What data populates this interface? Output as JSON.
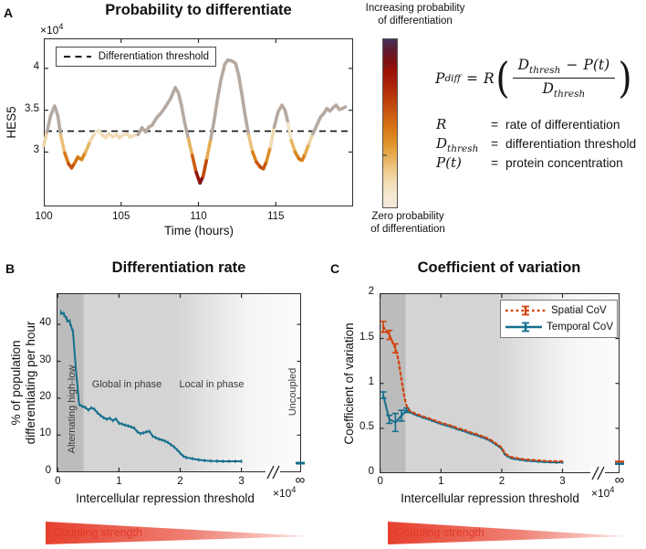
{
  "panelA": {
    "label": "A",
    "title": "Probability to differentiate",
    "y_exponent_prefix": "×10",
    "y_exponent": "4",
    "ylabel": "HES5",
    "xlabel": "Time (hours)",
    "legend_label": "Differentiation threshold",
    "colorbar_top_line1": "Increasing probability",
    "colorbar_top_line2": "of differentiation",
    "colorbar_bottom_line1": "Zero probability",
    "colorbar_bottom_line2": "of differentiation"
  },
  "equation": {
    "lhs_base": "P",
    "lhs_sub": "diff",
    "equals": "=",
    "rate_symbol": "R",
    "open_paren": "(",
    "close_paren": ")",
    "num_base": "D",
    "num_sub": "thresh",
    "minus": "−",
    "num_pt": "P(t)",
    "den_base": "D",
    "den_sub": "thresh",
    "defs": [
      {
        "sym": "R",
        "sub": "",
        "eq": "=",
        "desc": "rate of differentiation"
      },
      {
        "sym": "D",
        "sub": "thresh",
        "eq": "=",
        "desc": "differentiation threshold"
      },
      {
        "sym": "P(t)",
        "sub": "",
        "eq": "=",
        "desc": "protein concentration"
      }
    ]
  },
  "panelB": {
    "label": "B",
    "title": "Differentiation rate",
    "ylabel_line1": "% of population",
    "ylabel_line2": "differentiating per hour",
    "xlabel": "Intercellular repression threshold",
    "x_exponent_prefix": "×10",
    "x_exponent": "4",
    "region_labels": [
      "Alternating high-low",
      "Global in phase",
      "Local in phase",
      "Uncoupled"
    ],
    "infinity": "∞",
    "coupling_label": "Coupling strength"
  },
  "panelC": {
    "label": "C",
    "title": "Coefficient of variation",
    "ylabel": "Coefficient of variation",
    "xlabel": "Intercellular repression threshold",
    "x_exponent_prefix": "×10",
    "x_exponent": "4",
    "legend": [
      {
        "name": "Spatial CoV"
      },
      {
        "name": "Temporal CoV"
      }
    ],
    "infinity": "∞",
    "coupling_label": "Coupling strength"
  },
  "colors": {
    "teal": "#136f8d",
    "red_orange": "#d2430f",
    "curve_above_threshold": "#b6a9a1",
    "dark_region": "#bcbcbc",
    "light_region": "#d4d4d4",
    "coupling_red_start": "#e6402e",
    "coupling_red_end": "#fbe4e1",
    "axis": "#2b2b2b"
  },
  "chart_data": [
    {
      "id": "hes5-trace",
      "type": "line",
      "title": "Probability to differentiate",
      "xlabel": "Time (hours)",
      "ylabel": "HES5 (×10^4)",
      "xlim": [
        100,
        120
      ],
      "ylim": [
        2.35,
        4.36
      ],
      "xticks": [
        100,
        105,
        110,
        115
      ],
      "xtick_labels": [
        "100",
        "105",
        "110",
        "115"
      ],
      "yticks": [
        3,
        3.5,
        4
      ],
      "ytick_labels": [
        "3",
        "3.5",
        "4"
      ],
      "threshold": 3.25,
      "depth_scale": 0.64,
      "color_above": "#b6a9a1",
      "colormap": [
        [
          0,
          "#f3e7cf"
        ],
        [
          0.18,
          "#edd09b"
        ],
        [
          0.34,
          "#e4a846"
        ],
        [
          0.48,
          "#d9821a"
        ],
        [
          0.62,
          "#cb5a0f"
        ],
        [
          0.75,
          "#b5330b"
        ],
        [
          0.87,
          "#951409"
        ],
        [
          0.95,
          "#6f0f1c"
        ],
        [
          1,
          "#3f2b52"
        ]
      ],
      "points": [
        [
          100.0,
          3.08
        ],
        [
          100.2,
          3.24
        ],
        [
          100.45,
          3.44
        ],
        [
          100.7,
          3.55
        ],
        [
          100.9,
          3.44
        ],
        [
          101.1,
          3.2
        ],
        [
          101.35,
          2.99
        ],
        [
          101.6,
          2.86
        ],
        [
          101.8,
          2.81
        ],
        [
          102.0,
          2.87
        ],
        [
          102.2,
          2.94
        ],
        [
          102.45,
          2.91
        ],
        [
          102.7,
          3.0
        ],
        [
          103.0,
          3.13
        ],
        [
          103.3,
          3.23
        ],
        [
          103.55,
          3.26
        ],
        [
          103.8,
          3.2
        ],
        [
          104.0,
          3.17
        ],
        [
          104.2,
          3.22
        ],
        [
          104.45,
          3.18
        ],
        [
          104.7,
          3.21
        ],
        [
          104.9,
          3.17
        ],
        [
          105.1,
          3.2
        ],
        [
          105.35,
          3.22
        ],
        [
          105.6,
          3.18
        ],
        [
          105.85,
          3.2
        ],
        [
          106.1,
          3.21
        ],
        [
          106.35,
          3.29
        ],
        [
          106.6,
          3.24
        ],
        [
          106.8,
          3.3
        ],
        [
          107.0,
          3.32
        ],
        [
          107.3,
          3.41
        ],
        [
          107.6,
          3.47
        ],
        [
          107.9,
          3.55
        ],
        [
          108.2,
          3.64
        ],
        [
          108.5,
          3.77
        ],
        [
          108.7,
          3.71
        ],
        [
          108.9,
          3.56
        ],
        [
          109.1,
          3.36
        ],
        [
          109.35,
          3.16
        ],
        [
          109.6,
          2.96
        ],
        [
          109.85,
          2.76
        ],
        [
          110.1,
          2.63
        ],
        [
          110.3,
          2.71
        ],
        [
          110.55,
          2.93
        ],
        [
          110.8,
          3.16
        ],
        [
          111.0,
          3.36
        ],
        [
          111.2,
          3.6
        ],
        [
          111.45,
          3.86
        ],
        [
          111.7,
          4.05
        ],
        [
          111.9,
          4.1
        ],
        [
          112.15,
          4.09
        ],
        [
          112.4,
          4.06
        ],
        [
          112.6,
          3.92
        ],
        [
          112.8,
          3.7
        ],
        [
          113.0,
          3.46
        ],
        [
          113.25,
          3.2
        ],
        [
          113.5,
          3.0
        ],
        [
          113.75,
          2.88
        ],
        [
          114.0,
          2.82
        ],
        [
          114.2,
          2.8
        ],
        [
          114.4,
          2.89
        ],
        [
          114.65,
          3.06
        ],
        [
          114.9,
          3.3
        ],
        [
          115.15,
          3.48
        ],
        [
          115.4,
          3.56
        ],
        [
          115.6,
          3.5
        ],
        [
          115.8,
          3.34
        ],
        [
          116.0,
          3.14
        ],
        [
          116.25,
          3.0
        ],
        [
          116.5,
          2.92
        ],
        [
          116.7,
          2.9
        ],
        [
          116.9,
          2.98
        ],
        [
          117.15,
          3.1
        ],
        [
          117.4,
          3.22
        ],
        [
          117.65,
          3.32
        ],
        [
          117.9,
          3.42
        ],
        [
          118.1,
          3.46
        ],
        [
          118.3,
          3.52
        ],
        [
          118.5,
          3.49
        ],
        [
          118.7,
          3.53
        ],
        [
          118.9,
          3.56
        ],
        [
          119.1,
          3.51
        ],
        [
          119.3,
          3.52
        ],
        [
          119.5,
          3.54
        ]
      ]
    },
    {
      "id": "differentiation-rate",
      "type": "line",
      "title": "Differentiation rate",
      "xlabel": "Intercellular repression threshold (×10^4)",
      "ylabel": "% of population differentiating per hour",
      "xlim": [
        0,
        3.3
      ],
      "ylim": [
        0,
        48.5
      ],
      "xticks": [
        0,
        1,
        2,
        3
      ],
      "xtick_labels": [
        "0",
        "1",
        "2",
        "3"
      ],
      "yticks": [
        0,
        10,
        20,
        30,
        40
      ],
      "ytick_labels": [
        "0",
        "10",
        "20",
        "30",
        "40"
      ],
      "color": "#136f8d",
      "err": [
        0.7,
        0.7,
        0.8,
        0.9,
        1.0
      ],
      "err_default": 0.45,
      "infinity_value": 2.4,
      "points": [
        [
          0.05,
          43.2
        ],
        [
          0.1,
          42.8
        ],
        [
          0.15,
          41.3
        ],
        [
          0.2,
          40.5
        ],
        [
          0.25,
          37.8
        ],
        [
          0.3,
          27.0
        ],
        [
          0.35,
          18.3
        ],
        [
          0.4,
          17.8
        ],
        [
          0.45,
          17.5
        ],
        [
          0.5,
          16.8
        ],
        [
          0.55,
          17.4
        ],
        [
          0.6,
          17.0
        ],
        [
          0.65,
          16.0
        ],
        [
          0.7,
          15.3
        ],
        [
          0.75,
          14.7
        ],
        [
          0.8,
          14.3
        ],
        [
          0.85,
          14.6
        ],
        [
          0.9,
          13.9
        ],
        [
          0.95,
          14.4
        ],
        [
          1.0,
          13.2
        ],
        [
          1.05,
          13.0
        ],
        [
          1.1,
          12.7
        ],
        [
          1.15,
          12.5
        ],
        [
          1.2,
          12.2
        ],
        [
          1.25,
          11.9
        ],
        [
          1.3,
          10.9
        ],
        [
          1.35,
          10.4
        ],
        [
          1.4,
          10.6
        ],
        [
          1.45,
          10.9
        ],
        [
          1.5,
          11.0
        ],
        [
          1.55,
          9.7
        ],
        [
          1.6,
          9.3
        ],
        [
          1.65,
          8.9
        ],
        [
          1.7,
          8.7
        ],
        [
          1.75,
          8.4
        ],
        [
          1.8,
          8.0
        ],
        [
          1.85,
          7.4
        ],
        [
          1.9,
          6.8
        ],
        [
          1.95,
          6.0
        ],
        [
          2.0,
          5.1
        ],
        [
          2.05,
          4.3
        ],
        [
          2.1,
          3.9
        ],
        [
          2.2,
          3.6
        ],
        [
          2.3,
          3.3
        ],
        [
          2.4,
          3.1
        ],
        [
          2.5,
          3.0
        ],
        [
          2.6,
          2.95
        ],
        [
          2.7,
          2.9
        ],
        [
          2.8,
          2.9
        ],
        [
          2.9,
          2.9
        ],
        [
          3.0,
          2.9
        ]
      ]
    },
    {
      "id": "coefficient-of-variation",
      "type": "line",
      "title": "Coefficient of variation",
      "xlabel": "Intercellular repression threshold (×10^4)",
      "ylabel": "Coefficient of variation",
      "xlim": [
        0,
        3.3
      ],
      "ylim": [
        0,
        2
      ],
      "xticks": [
        0,
        1,
        2,
        3
      ],
      "xtick_labels": [
        "0",
        "1",
        "2",
        "3"
      ],
      "yticks": [
        0,
        0.5,
        1,
        1.5,
        2
      ],
      "ytick_labels": [
        "0",
        "0.5",
        "1",
        "1.5",
        "2"
      ],
      "legend_position": "top-right",
      "series": [
        {
          "name": "Temporal CoV",
          "style": "solid",
          "color": "#136f8d",
          "err": [
            0.035,
            0.045,
            0.1,
            0.06,
            0.025
          ],
          "err_default": 0.015,
          "infinity_value": 0.105,
          "points": [
            [
              0.05,
              0.87
            ],
            [
              0.15,
              0.6
            ],
            [
              0.25,
              0.565
            ],
            [
              0.35,
              0.64
            ],
            [
              0.43,
              0.7
            ],
            [
              0.5,
              0.675
            ],
            [
              0.55,
              0.66
            ],
            [
              0.6,
              0.645
            ],
            [
              0.65,
              0.635
            ],
            [
              0.7,
              0.62
            ],
            [
              0.75,
              0.61
            ],
            [
              0.8,
              0.6
            ],
            [
              0.85,
              0.585
            ],
            [
              0.9,
              0.575
            ],
            [
              0.95,
              0.56
            ],
            [
              1.0,
              0.55
            ],
            [
              1.05,
              0.54
            ],
            [
              1.1,
              0.53
            ],
            [
              1.15,
              0.52
            ],
            [
              1.2,
              0.51
            ],
            [
              1.25,
              0.495
            ],
            [
              1.3,
              0.485
            ],
            [
              1.35,
              0.475
            ],
            [
              1.4,
              0.465
            ],
            [
              1.45,
              0.45
            ],
            [
              1.5,
              0.44
            ],
            [
              1.55,
              0.43
            ],
            [
              1.6,
              0.42
            ],
            [
              1.65,
              0.405
            ],
            [
              1.7,
              0.395
            ],
            [
              1.75,
              0.38
            ],
            [
              1.8,
              0.365
            ],
            [
              1.85,
              0.345
            ],
            [
              1.9,
              0.32
            ],
            [
              1.95,
              0.3
            ],
            [
              2.0,
              0.27
            ],
            [
              2.05,
              0.21
            ],
            [
              2.1,
              0.185
            ],
            [
              2.15,
              0.17
            ],
            [
              2.2,
              0.16
            ],
            [
              2.3,
              0.15
            ],
            [
              2.4,
              0.14
            ],
            [
              2.5,
              0.135
            ],
            [
              2.6,
              0.13
            ],
            [
              2.7,
              0.125
            ],
            [
              2.8,
              0.122
            ],
            [
              2.9,
              0.12
            ],
            [
              3.0,
              0.12
            ]
          ]
        },
        {
          "name": "Spatial CoV",
          "style": "dotted",
          "color": "#d2430f",
          "err": [
            0.06,
            0.05,
            0.05
          ],
          "err_default": 0,
          "infinity_value": 0.115,
          "points": [
            [
              0.05,
              1.63
            ],
            [
              0.15,
              1.54
            ],
            [
              0.25,
              1.39
            ],
            [
              0.3,
              1.26
            ],
            [
              0.33,
              1.13
            ],
            [
              0.36,
              1.0
            ],
            [
              0.39,
              0.88
            ],
            [
              0.42,
              0.78
            ],
            [
              0.45,
              0.72
            ],
            [
              0.5,
              0.687
            ],
            [
              0.55,
              0.672
            ],
            [
              0.6,
              0.657
            ],
            [
              0.65,
              0.647
            ],
            [
              0.7,
              0.632
            ],
            [
              0.75,
              0.622
            ],
            [
              0.8,
              0.612
            ],
            [
              0.85,
              0.597
            ],
            [
              0.9,
              0.587
            ],
            [
              0.95,
              0.572
            ],
            [
              1.0,
              0.562
            ],
            [
              1.05,
              0.552
            ],
            [
              1.1,
              0.542
            ],
            [
              1.15,
              0.532
            ],
            [
              1.2,
              0.522
            ],
            [
              1.25,
              0.507
            ],
            [
              1.3,
              0.497
            ],
            [
              1.35,
              0.487
            ],
            [
              1.4,
              0.477
            ],
            [
              1.45,
              0.462
            ],
            [
              1.5,
              0.452
            ],
            [
              1.55,
              0.442
            ],
            [
              1.6,
              0.432
            ],
            [
              1.65,
              0.417
            ],
            [
              1.7,
              0.407
            ],
            [
              1.75,
              0.392
            ],
            [
              1.8,
              0.377
            ],
            [
              1.85,
              0.357
            ],
            [
              1.9,
              0.332
            ],
            [
              1.95,
              0.312
            ],
            [
              2.0,
              0.282
            ],
            [
              2.05,
              0.222
            ],
            [
              2.1,
              0.197
            ],
            [
              2.15,
              0.182
            ],
            [
              2.2,
              0.172
            ],
            [
              2.3,
              0.162
            ],
            [
              2.4,
              0.152
            ],
            [
              2.5,
              0.147
            ],
            [
              2.6,
              0.142
            ],
            [
              2.7,
              0.137
            ],
            [
              2.8,
              0.134
            ],
            [
              2.9,
              0.132
            ],
            [
              3.0,
              0.132
            ]
          ]
        }
      ]
    }
  ]
}
